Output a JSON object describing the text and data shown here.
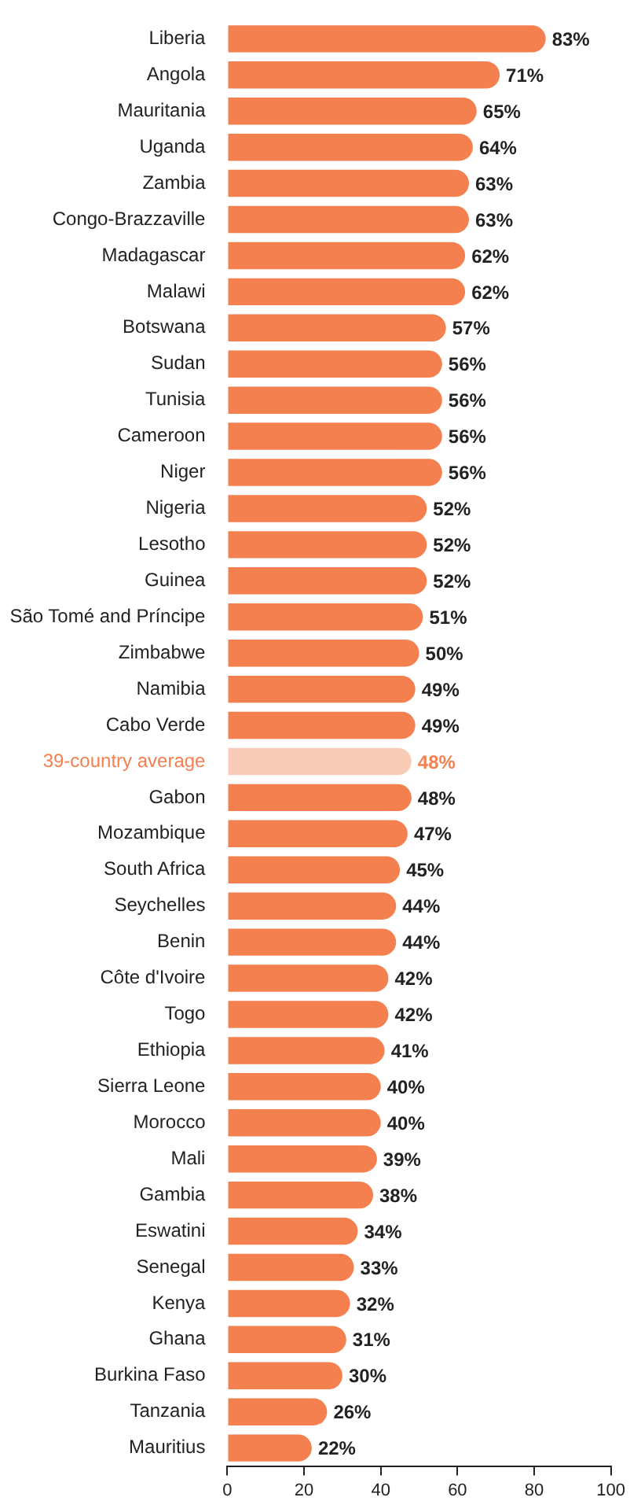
{
  "chart_data": {
    "type": "bar",
    "orientation": "horizontal",
    "categories": [
      "Liberia",
      "Angola",
      "Mauritania",
      "Uganda",
      "Zambia",
      "Congo-Brazzaville",
      "Madagascar",
      "Malawi",
      "Botswana",
      "Sudan",
      "Tunisia",
      "Cameroon",
      "Niger",
      "Nigeria",
      "Lesotho",
      "Guinea",
      "São Tomé and Príncipe",
      "Zimbabwe",
      "Namibia",
      "Cabo Verde",
      "39-country average",
      "Gabon",
      "Mozambique",
      "South Africa",
      "Seychelles",
      "Benin",
      "Côte d'Ivoire",
      "Togo",
      "Ethiopia",
      "Sierra Leone",
      "Morocco",
      "Mali",
      "Gambia",
      "Eswatini",
      "Senegal",
      "Kenya",
      "Ghana",
      "Burkina Faso",
      "Tanzania",
      "Mauritius"
    ],
    "values": [
      83,
      71,
      65,
      64,
      63,
      63,
      62,
      62,
      57,
      56,
      56,
      56,
      56,
      52,
      52,
      52,
      51,
      50,
      49,
      49,
      48,
      48,
      47,
      45,
      44,
      44,
      42,
      42,
      41,
      40,
      40,
      39,
      38,
      34,
      33,
      32,
      31,
      30,
      26,
      22
    ],
    "value_labels": [
      "83%",
      "71%",
      "65%",
      "64%",
      "63%",
      "63%",
      "62%",
      "62%",
      "57%",
      "56%",
      "56%",
      "56%",
      "56%",
      "52%",
      "52%",
      "52%",
      "51%",
      "50%",
      "49%",
      "49%",
      "48%",
      "48%",
      "47%",
      "45%",
      "44%",
      "44%",
      "42%",
      "42%",
      "41%",
      "40%",
      "40%",
      "39%",
      "38%",
      "34%",
      "33%",
      "32%",
      "31%",
      "30%",
      "26%",
      "22%"
    ],
    "colors": [
      "#f4804f",
      "#f4804f",
      "#f4804f",
      "#f4804f",
      "#f4804f",
      "#f4804f",
      "#f4804f",
      "#f4804f",
      "#f4804f",
      "#f4804f",
      "#f4804f",
      "#f4804f",
      "#f4804f",
      "#f4804f",
      "#f4804f",
      "#f4804f",
      "#f4804f",
      "#f4804f",
      "#f4804f",
      "#f4804f",
      "#f9ccb8",
      "#f4804f",
      "#f4804f",
      "#f4804f",
      "#f4804f",
      "#f4804f",
      "#f4804f",
      "#f4804f",
      "#f4804f",
      "#f4804f",
      "#f4804f",
      "#f4804f",
      "#f4804f",
      "#f4804f",
      "#f4804f",
      "#f4804f",
      "#f4804f",
      "#f4804f",
      "#f4804f",
      "#f4804f"
    ],
    "xlim": [
      0,
      100
    ],
    "xticks": [
      0,
      20,
      40,
      60,
      80,
      100
    ],
    "grid": false,
    "legend": false
  }
}
